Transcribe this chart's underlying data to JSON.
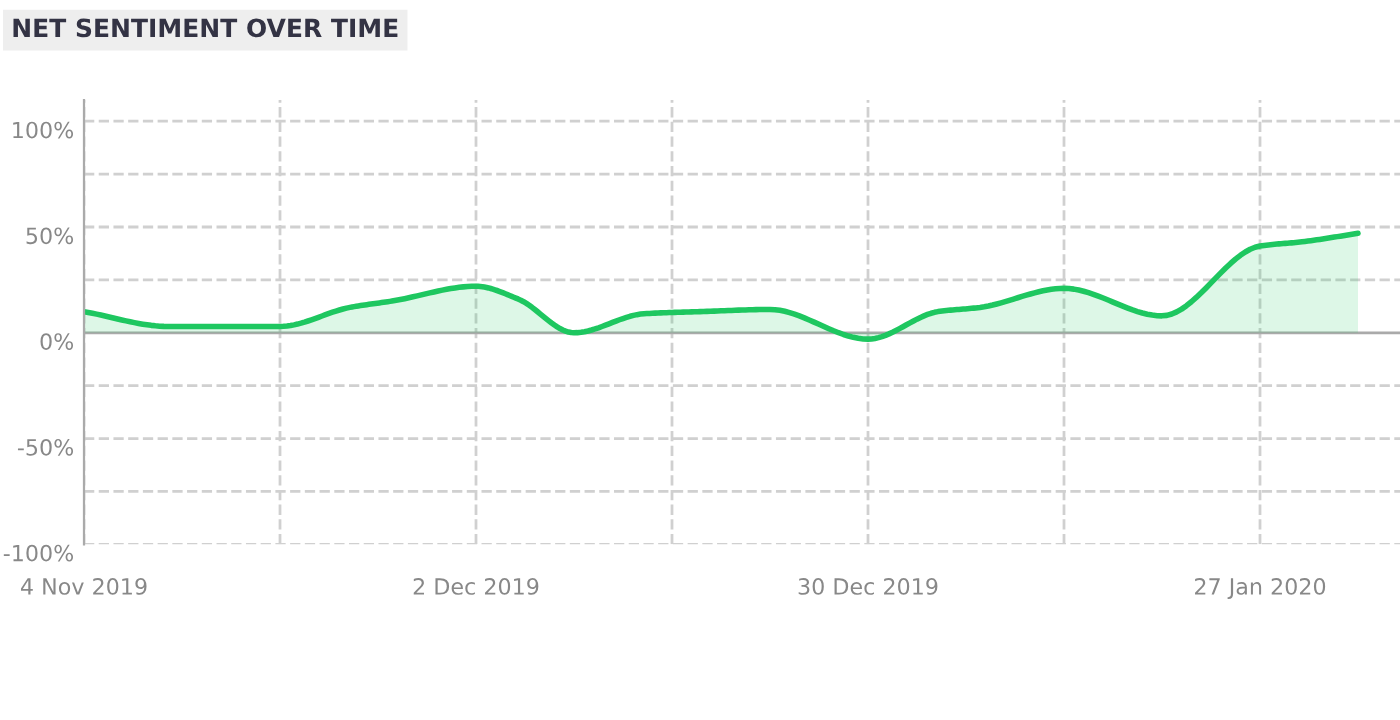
{
  "chart_data": {
    "type": "area",
    "title": "NET SENTIMENT OVER TIME",
    "x": [
      "2019-11-04",
      "2019-11-10",
      "2019-11-18",
      "2019-11-23",
      "2019-11-26",
      "2019-12-02",
      "2019-12-05",
      "2019-12-09",
      "2019-12-14",
      "2019-12-18",
      "2019-12-23",
      "2019-12-30",
      "2020-01-04",
      "2020-01-07",
      "2020-01-13",
      "2020-01-20",
      "2020-01-27",
      "2020-01-30",
      "2020-02-03"
    ],
    "series": [
      {
        "color": "#1ec760",
        "values": [
          10,
          3,
          3,
          12,
          15,
          22,
          16,
          0,
          9,
          10,
          11,
          -3,
          10,
          12,
          21,
          8,
          41,
          43,
          47
        ]
      }
    ],
    "xlim": [
      "2019-11-04",
      "2020-02-06"
    ],
    "xticks": [
      {
        "value": "2019-11-04",
        "label": "4 Nov 2019"
      },
      {
        "value": "2019-11-18",
        "label": null
      },
      {
        "value": "2019-12-02",
        "label": "2 Dec 2019"
      },
      {
        "value": "2019-12-16",
        "label": null
      },
      {
        "value": "2019-12-30",
        "label": "30 Dec 2019"
      },
      {
        "value": "2020-01-13",
        "label": null
      },
      {
        "value": "2020-01-27",
        "label": "27 Jan 2020"
      }
    ],
    "ylim": [
      -100,
      110
    ],
    "yticks": [
      {
        "value": -100,
        "label": "-100%"
      },
      {
        "value": -75,
        "label": null
      },
      {
        "value": -50,
        "label": "-50%"
      },
      {
        "value": -25,
        "label": null
      },
      {
        "value": 0,
        "label": "0%"
      },
      {
        "value": 25,
        "label": null
      },
      {
        "value": 50,
        "label": "50%"
      },
      {
        "value": 75,
        "label": null
      },
      {
        "value": 100,
        "label": "100%"
      }
    ],
    "grid": true,
    "line_style": "solid"
  }
}
